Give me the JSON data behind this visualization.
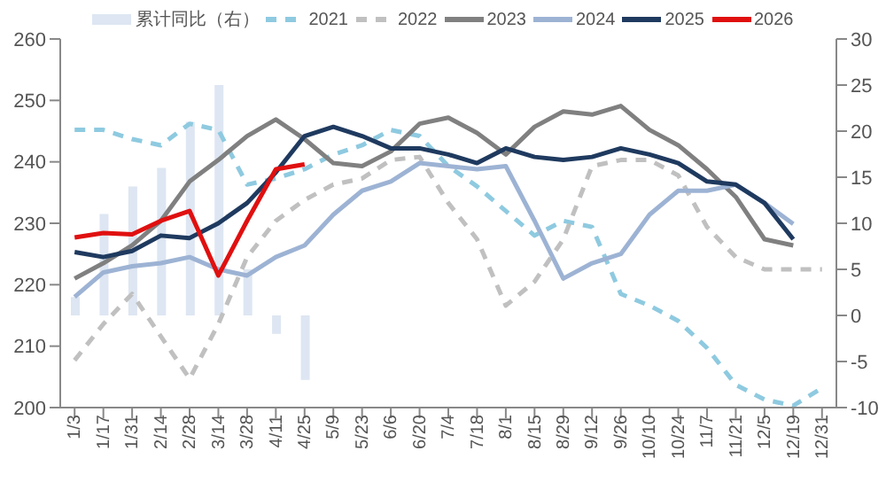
{
  "chart_data": {
    "type": "line",
    "categories": [
      "1/3",
      "1/17",
      "1/31",
      "2/14",
      "2/28",
      "3/14",
      "3/28",
      "4/11",
      "4/25",
      "5/9",
      "5/23",
      "6/6",
      "6/20",
      "7/4",
      "7/18",
      "8/1",
      "8/15",
      "8/29",
      "9/12",
      "9/26",
      "10/10",
      "10/24",
      "11/7",
      "11/21",
      "12/5",
      "12/19",
      "12/31"
    ],
    "series": [
      {
        "name": "累计同比（右）",
        "type": "bar",
        "axis": "y2",
        "color": "#dde6f2",
        "values": [
          2,
          11,
          14,
          16,
          21,
          25,
          5,
          -2,
          -7,
          null,
          null,
          null,
          null,
          null,
          null,
          null,
          null,
          null,
          null,
          null,
          null,
          null,
          null,
          null,
          null,
          null,
          null
        ]
      },
      {
        "name": "2021",
        "line_style": "dashed",
        "color": "#8ecae0",
        "values": [
          245.2,
          245.2,
          243.7,
          242.7,
          246.2,
          245.2,
          236.3,
          237.3,
          238.8,
          241.2,
          242.7,
          245.2,
          244.2,
          239.3,
          236,
          232,
          228,
          230.4,
          229.4,
          218.5,
          216.6,
          214.1,
          209.7,
          203.7,
          201.3,
          200.3,
          203.2
        ]
      },
      {
        "name": "2022",
        "line_style": "dashed",
        "color": "#c0c0c0",
        "values": [
          207.7,
          213.6,
          218.5,
          211.6,
          204.7,
          213.6,
          224.5,
          230.4,
          233.8,
          236.3,
          237.3,
          240.3,
          240.8,
          233.3,
          227.4,
          216.6,
          220.5,
          227.4,
          239.3,
          240.3,
          240.3,
          237.8,
          229.4,
          224.5,
          222.5,
          222.5,
          222.5
        ]
      },
      {
        "name": "2023",
        "line_style": "solid",
        "color": "#808080",
        "values": [
          221,
          223.5,
          226.4,
          230.4,
          236.8,
          240.3,
          244.2,
          246.9,
          243.7,
          239.8,
          239.3,
          241.7,
          246.2,
          247.2,
          244.7,
          241.2,
          245.7,
          248.2,
          247.7,
          249.1,
          245.2,
          242.7,
          238.8,
          234.3,
          227.4,
          226.4,
          null
        ]
      },
      {
        "name": "2024",
        "line_style": "solid",
        "color": "#9db3d4",
        "values": [
          218,
          222,
          223,
          223.5,
          224.5,
          222.5,
          221.5,
          224.5,
          226.4,
          231.4,
          235.3,
          236.8,
          239.8,
          239.3,
          238.8,
          239.3,
          230.4,
          221,
          223.5,
          225,
          231.4,
          235.3,
          235.3,
          236.3,
          233.3,
          229.9,
          null
        ]
      },
      {
        "name": "2025",
        "line_style": "solid",
        "color": "#1f3a5f",
        "values": [
          225.3,
          224.5,
          225.5,
          228,
          227.6,
          230,
          233.3,
          238.3,
          244.2,
          245.7,
          244.2,
          242.2,
          242.2,
          241.2,
          239.8,
          242.2,
          240.8,
          240.3,
          240.8,
          242.2,
          241.2,
          239.8,
          236.8,
          236.3,
          233.3,
          227.4,
          null
        ]
      },
      {
        "name": "2026",
        "line_style": "solid",
        "color": "#e01010",
        "values": [
          227.7,
          228.4,
          228.2,
          230.4,
          232,
          221.5,
          230.4,
          238.8,
          239.6,
          null,
          null,
          null,
          null,
          null,
          null,
          null,
          null,
          null,
          null,
          null,
          null,
          null,
          null,
          null,
          null,
          null,
          null
        ]
      }
    ],
    "ylim": [
      200,
      260
    ],
    "yticks": [
      200,
      210,
      220,
      230,
      240,
      250,
      260
    ],
    "y2lim": [
      -10,
      30
    ],
    "y2ticks": [
      -10,
      -5,
      0,
      5,
      10,
      15,
      20,
      25,
      30
    ],
    "grid": false,
    "legend": "top"
  }
}
